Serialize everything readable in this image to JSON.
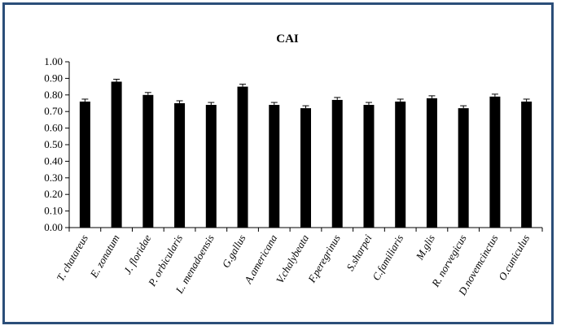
{
  "chart_data": {
    "type": "bar",
    "title": "CAI",
    "xlabel": "",
    "ylabel": "",
    "ylim": [
      0,
      1
    ],
    "y_ticks": [
      "0.00",
      "0.10",
      "0.20",
      "0.30",
      "0.40",
      "0.50",
      "0.60",
      "0.70",
      "0.80",
      "0.90",
      "1.00"
    ],
    "categories": [
      "T. chatareus",
      "E. zonatum",
      "J. floridae",
      "P. orbicularis",
      "L. menadoensis",
      "G.gallus",
      "A.americana",
      "V.chalybeata",
      "F.peregrinus",
      "S.sharpei",
      "C.familiaris",
      "M.glis",
      "R. norvegicus",
      "D.novemcinctus",
      "O.cuniculus"
    ],
    "values": [
      0.76,
      0.88,
      0.8,
      0.75,
      0.74,
      0.85,
      0.74,
      0.72,
      0.77,
      0.74,
      0.76,
      0.78,
      0.72,
      0.79,
      0.76
    ],
    "error_bars": true,
    "bar_color": "#000000",
    "grid": false,
    "legend": "none"
  }
}
